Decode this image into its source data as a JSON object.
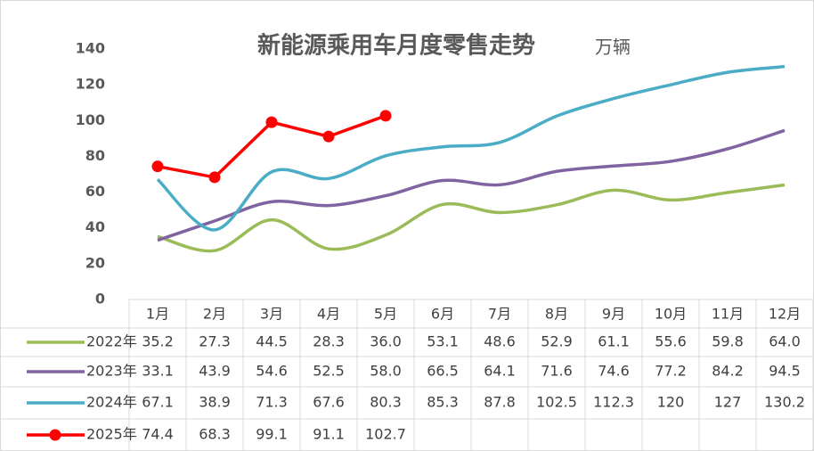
{
  "chart_data": {
    "type": "line",
    "title": "新能源乘用车月度零售走势",
    "subtitle": "万辆",
    "categories": [
      "1月",
      "2月",
      "3月",
      "4月",
      "5月",
      "6月",
      "7月",
      "8月",
      "9月",
      "10月",
      "11月",
      "12月"
    ],
    "ylim": [
      0,
      140
    ],
    "yticks": [
      0,
      20,
      40,
      60,
      80,
      100,
      120,
      140
    ],
    "series": [
      {
        "name": "2022年",
        "color": "#9bbb59",
        "smooth": true,
        "values": [
          35.2,
          27.3,
          44.5,
          28.3,
          36.0,
          53.1,
          48.6,
          52.9,
          61.1,
          55.6,
          59.8,
          64.0
        ],
        "value_labels": [
          "35.2",
          "27.3",
          "44.5",
          "28.3",
          "36.0",
          "53.1",
          "48.6",
          "52.9",
          "61.1",
          "55.6",
          "59.8",
          "64.0"
        ]
      },
      {
        "name": "2023年",
        "color": "#8064a2",
        "smooth": true,
        "values": [
          33.1,
          43.9,
          54.6,
          52.5,
          58.0,
          66.5,
          64.1,
          71.6,
          74.6,
          77.2,
          84.2,
          94.5
        ],
        "value_labels": [
          "33.1",
          "43.9",
          "54.6",
          "52.5",
          "58.0",
          "66.5",
          "64.1",
          "71.6",
          "74.6",
          "77.2",
          "84.2",
          "94.5"
        ]
      },
      {
        "name": "2024年",
        "color": "#4bacc6",
        "smooth": true,
        "values": [
          67.1,
          38.9,
          71.3,
          67.6,
          80.3,
          85.3,
          87.8,
          102.5,
          112.3,
          120,
          127,
          130.2
        ],
        "value_labels": [
          "67.1",
          "38.9",
          "71.3",
          "67.6",
          "80.3",
          "85.3",
          "87.8",
          "102.5",
          "112.3",
          "120",
          "127",
          "130.2"
        ]
      },
      {
        "name": "2025年",
        "color": "#ff0000",
        "smooth": false,
        "markers": true,
        "values": [
          74.4,
          68.3,
          99.1,
          91.1,
          102.7,
          null,
          null,
          null,
          null,
          null,
          null,
          null
        ],
        "value_labels": [
          "74.4",
          "68.3",
          "99.1",
          "91.1",
          "102.7",
          null,
          null,
          null,
          null,
          null,
          null,
          null
        ]
      }
    ]
  }
}
